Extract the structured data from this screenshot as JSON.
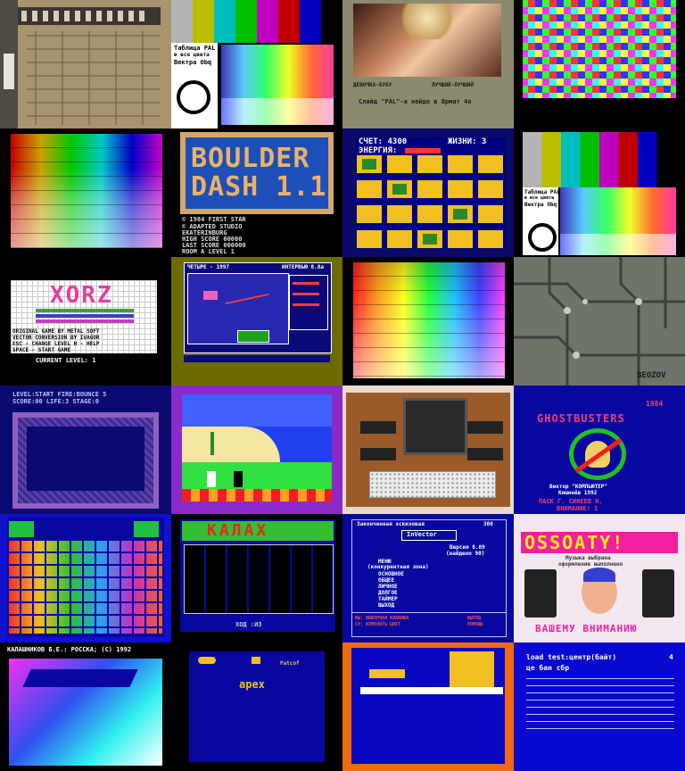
{
  "tiles": {
    "t1": {
      "desc": ""
    },
    "t2": {
      "line1": "Таблица PAL",
      "line2": "в все цвета",
      "line3": "Вектра Obq"
    },
    "t3": {
      "left": "ДЕВОЧКА-БУБУ",
      "right": "ЛУЧШИЙ-ЛУЧШИЙ",
      "footer": "Слайд \"PAL\"-а нейде в 8рмат 4о"
    },
    "t6": {
      "title1": "BOULDER",
      "title2": "DASH 1.1",
      "c1": "© 1984 FIRST STAR",
      "c2": "© ADAPTED STUDIO",
      "c3": "EKATERINBURG",
      "hs": "HIGH SCORE 00000",
      "ls": "LAST SCORE 000000",
      "room": "ROOM A LEVEL 1"
    },
    "t7": {
      "score": "СЧЕТ: 4300",
      "lives": "ЖИЗНИ: 3",
      "energy": "ЭНЕРГИЯ:"
    },
    "t8": {
      "line1": "Таблица PAL",
      "line2": "в все цвета",
      "line3": "Вектра Obq"
    },
    "t9": {
      "title": "XORZ",
      "l1": "ORIGINAL GAME BY METAL SOFT",
      "l2": "VECTOR CONVERSION BY IVAGOR",
      "l3": "ESC - CHANGE LEVEL  H - HELP",
      "l4": "SPACE - START GAME",
      "l5": "CURRENT LEVEL: 1"
    },
    "t10": {
      "top1": "ЧЕТЫРЕ - 1997",
      "top2": "ИНТЕРВЬЮ 8.8a"
    },
    "t12": {
      "label": "BEOZOV"
    },
    "t13": {
      "l1": "LEVEL:START   FIRE:BOUNCE 5",
      "l2": "SCORE:00   LIFE:3   STAGE:0"
    },
    "t16": {
      "year": "1984",
      "title": "GHOSTBUSTERS",
      "c1": "Вектор \"КОМПЬЮТЕР\"",
      "c2": "Кишинёв 1992",
      "c3": "ПАСК  Г.  СИНЕЕВ Н.",
      "c4": "ВНИМАНИЕ!  1"
    },
    "t18": {
      "title": "КАЛАХ",
      "bottom": "ХОД :ИЗ"
    },
    "t19": {
      "top1": "Законченная эскизовая",
      "top2": "300",
      "title": "InVector",
      "v": "Версия 8.09",
      "v2": "(найдено 90)",
      "menu": "МЕНЮ",
      "m1": "(конкурентная зона)",
      "m2": "ОСНОВНОЕ",
      "m3": "ОБЩЕЕ",
      "m4": "ЛИЧНОЕ",
      "m5": "ДОЛГОЕ",
      "m6": "ТАЙМЕР",
      "m7": "ВЫХОД",
      "b1": "ВЫ: ВЫБОРНАЯ КЛАВИША",
      "b2": "СУ: ИЗМЕНИТЬ ЦВЕТ",
      "b3": "ВЫХОД",
      "b4": "ПОМОЩЬ"
    },
    "t20": {
      "title": "OSSOATY!",
      "s1": "Музыка выбрана",
      "s2": "оформление выполнено",
      "bottom": "ВАШЕМУ ВНИМАНИЮ"
    },
    "t21": {
      "top": "КАЛАШНИКОВ Б.Е.: РОССКА; (C) 1992"
    },
    "t22": {
      "title": "apex",
      "label": "Patcof"
    },
    "t24": {
      "l1": "load test:центр(байт)",
      "l2": "це бан сбр",
      "mark": "4"
    }
  }
}
